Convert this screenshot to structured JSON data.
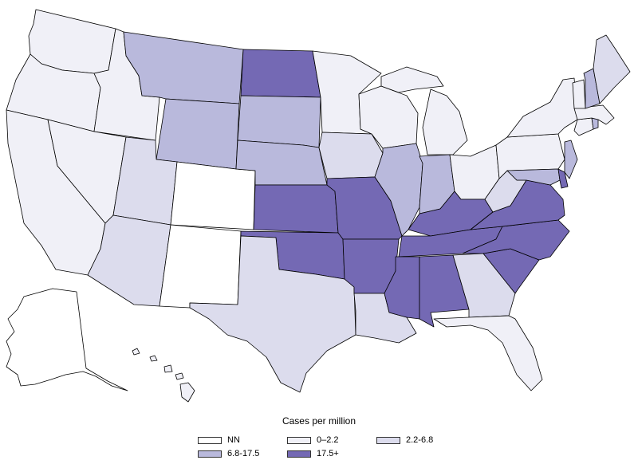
{
  "map": {
    "legend_title": "Cases per million",
    "classes": [
      {
        "label": "NN",
        "color": "#ffffff"
      },
      {
        "label": "0–2.2",
        "color": "#f0f0f7"
      },
      {
        "label": "2.2-6.8",
        "color": "#dcdced"
      },
      {
        "label": "6.8-17.5",
        "color": "#b9b9dc"
      },
      {
        "label": "17.5+",
        "color": "#7469b4"
      }
    ],
    "states": [
      {
        "id": "WA",
        "class": 1
      },
      {
        "id": "OR",
        "class": 1
      },
      {
        "id": "CA",
        "class": 1
      },
      {
        "id": "ID",
        "class": 1
      },
      {
        "id": "NV",
        "class": 1
      },
      {
        "id": "MT",
        "class": 3
      },
      {
        "id": "WY",
        "class": 3
      },
      {
        "id": "UT",
        "class": 2
      },
      {
        "id": "AZ",
        "class": 2
      },
      {
        "id": "CO",
        "class": 0
      },
      {
        "id": "NM",
        "class": 0
      },
      {
        "id": "ND",
        "class": 4
      },
      {
        "id": "SD",
        "class": 3
      },
      {
        "id": "NE",
        "class": 3
      },
      {
        "id": "KS",
        "class": 4
      },
      {
        "id": "OK",
        "class": 4
      },
      {
        "id": "TX",
        "class": 2
      },
      {
        "id": "MN",
        "class": 1
      },
      {
        "id": "IA",
        "class": 2
      },
      {
        "id": "MO",
        "class": 4
      },
      {
        "id": "AR",
        "class": 4
      },
      {
        "id": "LA",
        "class": 2
      },
      {
        "id": "WI",
        "class": 1
      },
      {
        "id": "IL",
        "class": 3
      },
      {
        "id": "MI",
        "class": 1
      },
      {
        "id": "IN",
        "class": 3
      },
      {
        "id": "OH",
        "class": 1
      },
      {
        "id": "KY",
        "class": 4
      },
      {
        "id": "TN",
        "class": 4
      },
      {
        "id": "MS",
        "class": 4
      },
      {
        "id": "AL",
        "class": 4
      },
      {
        "id": "GA",
        "class": 2
      },
      {
        "id": "FL",
        "class": 1
      },
      {
        "id": "SC",
        "class": 4
      },
      {
        "id": "NC",
        "class": 4
      },
      {
        "id": "VA",
        "class": 4
      },
      {
        "id": "WV",
        "class": 2
      },
      {
        "id": "PA",
        "class": 1
      },
      {
        "id": "NY",
        "class": 1
      },
      {
        "id": "MD",
        "class": 3
      },
      {
        "id": "DE",
        "class": 4
      },
      {
        "id": "NJ",
        "class": 3
      },
      {
        "id": "CT",
        "class": 1
      },
      {
        "id": "RI",
        "class": 3
      },
      {
        "id": "MA",
        "class": 1
      },
      {
        "id": "VT",
        "class": 1
      },
      {
        "id": "NH",
        "class": 3
      },
      {
        "id": "ME",
        "class": 2
      },
      {
        "id": "AK",
        "class": 0
      },
      {
        "id": "HI",
        "class": 1
      }
    ]
  }
}
